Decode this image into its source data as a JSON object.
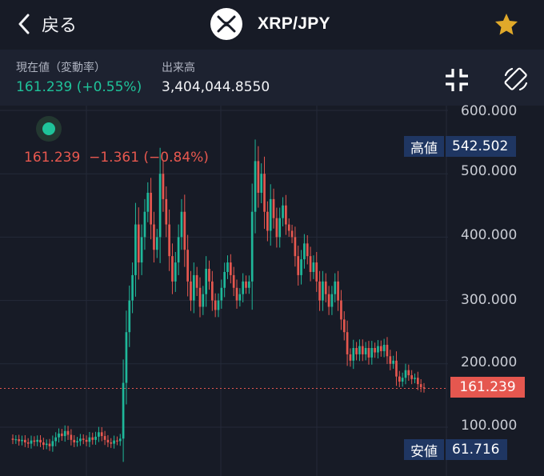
{
  "header": {
    "back_label": "戻る",
    "pair": "XRP/JPY",
    "back_icon": "chevron-left-icon",
    "logo_icon": "xrp-logo-icon",
    "star_icon": "star-icon",
    "star_color": "#e0a92a"
  },
  "info": {
    "current_label": "現在値（変動率）",
    "current_value": "161.239 (+0.55%)",
    "current_color": "#1fc39a",
    "volume_label": "出来高",
    "volume_value": "3,404,044.8550",
    "collapse_icon": "collapse-icon",
    "rotate_icon": "rotate-screen-icon"
  },
  "chart": {
    "overlay_text": "161.239  −1.361 (−0.84%)",
    "high_label": "高値",
    "high_value": "542.502",
    "low_label": "安値",
    "low_value": "61.716",
    "last_value": "161.239",
    "ticks": [
      "600.000",
      "500.000",
      "400.000",
      "300.000",
      "200.000",
      "100.000"
    ],
    "up_color": "#1fb89a",
    "down_color": "#e5574f",
    "legend_dot_color": "#1fc39a"
  },
  "chart_data": {
    "type": "candlestick",
    "y_ticks": [
      100,
      200,
      300,
      400,
      500,
      600
    ],
    "ylim": [
      50,
      620
    ],
    "last_price": 161.239,
    "high": 542.502,
    "low": 61.716,
    "grid": true,
    "candles": [
      [
        82,
        80
      ],
      [
        80,
        81
      ],
      [
        81,
        78
      ],
      [
        78,
        80
      ],
      [
        80,
        76
      ],
      [
        76,
        74
      ],
      [
        74,
        79
      ],
      [
        79,
        77
      ],
      [
        77,
        80
      ],
      [
        80,
        76
      ],
      [
        76,
        72
      ],
      [
        72,
        74
      ],
      [
        74,
        70
      ],
      [
        70,
        78
      ],
      [
        78,
        84
      ],
      [
        84,
        90
      ],
      [
        90,
        86
      ],
      [
        86,
        94
      ],
      [
        94,
        88
      ],
      [
        88,
        80
      ],
      [
        80,
        76
      ],
      [
        76,
        78
      ],
      [
        78,
        82
      ],
      [
        82,
        80
      ],
      [
        80,
        77
      ],
      [
        77,
        84
      ],
      [
        84,
        80
      ],
      [
        80,
        85
      ],
      [
        85,
        92
      ],
      [
        92,
        86
      ],
      [
        86,
        80
      ],
      [
        80,
        76
      ],
      [
        76,
        74
      ],
      [
        74,
        79
      ],
      [
        79,
        78
      ],
      [
        78,
        82
      ],
      [
        82,
        170
      ],
      [
        170,
        250
      ],
      [
        250,
        300
      ],
      [
        300,
        340
      ],
      [
        340,
        420
      ],
      [
        420,
        360
      ],
      [
        360,
        400
      ],
      [
        400,
        440
      ],
      [
        440,
        470
      ],
      [
        470,
        420
      ],
      [
        420,
        380
      ],
      [
        380,
        400
      ],
      [
        400,
        500
      ],
      [
        500,
        460
      ],
      [
        460,
        420
      ],
      [
        420,
        370
      ],
      [
        370,
        330
      ],
      [
        330,
        360
      ],
      [
        360,
        400
      ],
      [
        400,
        440
      ],
      [
        440,
        380
      ],
      [
        380,
        330
      ],
      [
        330,
        300
      ],
      [
        300,
        340
      ],
      [
        340,
        320
      ],
      [
        320,
        290
      ],
      [
        290,
        310
      ],
      [
        310,
        350
      ],
      [
        350,
        330
      ],
      [
        330,
        300
      ],
      [
        300,
        285
      ],
      [
        285,
        300
      ],
      [
        300,
        320
      ],
      [
        320,
        345
      ],
      [
        345,
        360
      ],
      [
        360,
        340
      ],
      [
        340,
        320
      ],
      [
        320,
        300
      ],
      [
        300,
        310
      ],
      [
        310,
        330
      ],
      [
        330,
        320
      ],
      [
        320,
        330
      ],
      [
        330,
        440
      ],
      [
        440,
        520
      ],
      [
        520,
        470
      ],
      [
        470,
        500
      ],
      [
        500,
        440
      ],
      [
        440,
        410
      ],
      [
        410,
        460
      ],
      [
        460,
        430
      ],
      [
        430,
        400
      ],
      [
        400,
        430
      ],
      [
        430,
        450
      ],
      [
        450,
        420
      ],
      [
        420,
        410
      ],
      [
        410,
        400
      ],
      [
        400,
        370
      ],
      [
        370,
        340
      ],
      [
        340,
        365
      ],
      [
        365,
        390
      ],
      [
        390,
        370
      ],
      [
        370,
        345
      ],
      [
        345,
        360
      ],
      [
        360,
        330
      ],
      [
        330,
        300
      ],
      [
        300,
        330
      ],
      [
        330,
        310
      ],
      [
        310,
        290
      ],
      [
        290,
        310
      ],
      [
        310,
        330
      ],
      [
        330,
        300
      ],
      [
        300,
        270
      ],
      [
        270,
        250
      ],
      [
        250,
        215
      ],
      [
        215,
        205
      ],
      [
        205,
        225
      ],
      [
        225,
        215
      ],
      [
        215,
        228
      ],
      [
        228,
        215
      ],
      [
        215,
        225
      ],
      [
        225,
        210
      ],
      [
        210,
        225
      ],
      [
        225,
        218
      ],
      [
        218,
        228
      ],
      [
        228,
        220
      ],
      [
        220,
        230
      ],
      [
        230,
        212
      ],
      [
        212,
        200
      ],
      [
        200,
        205
      ],
      [
        205,
        180
      ],
      [
        180,
        172
      ],
      [
        172,
        178
      ],
      [
        178,
        190
      ],
      [
        190,
        182
      ],
      [
        182,
        176
      ],
      [
        176,
        178
      ],
      [
        178,
        168
      ],
      [
        168,
        163
      ],
      [
        163,
        161.239
      ]
    ]
  }
}
